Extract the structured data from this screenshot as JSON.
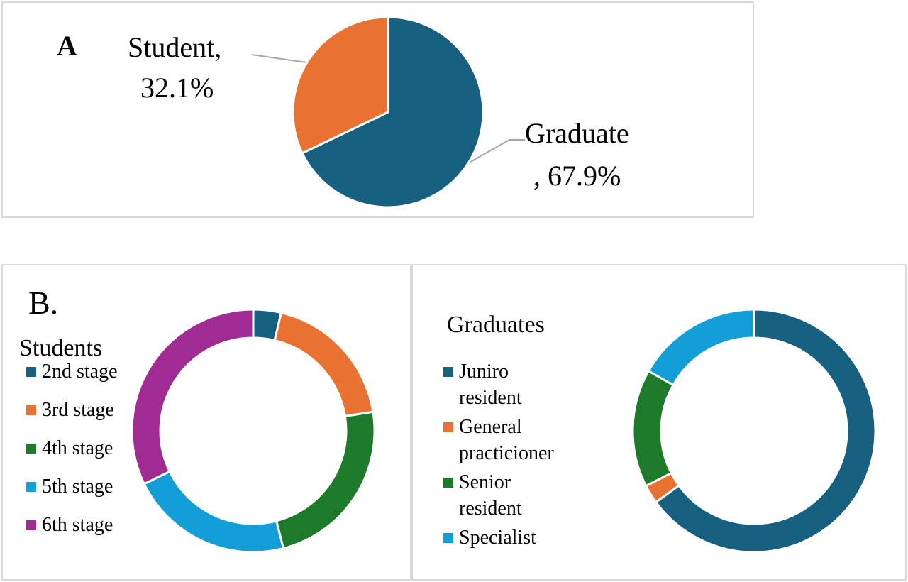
{
  "chart_data": [
    {
      "type": "pie",
      "panel": "A",
      "categories": [
        "Graduate",
        "Student"
      ],
      "values": [
        67.9,
        32.1
      ],
      "value_labels": [
        [
          "Graduate",
          ", 67.9%"
        ],
        [
          "Student,",
          "32.1%"
        ]
      ],
      "colors": [
        "#17607f",
        "#e97132"
      ]
    },
    {
      "type": "donut",
      "panel": "B.",
      "title": "Students",
      "categories": [
        "2nd stage",
        "3rd stage",
        "4th stage",
        "5th stage",
        "6th stage"
      ],
      "values": [
        3.7,
        18.8,
        23.5,
        21.8,
        32.2
      ],
      "colors": [
        "#17607f",
        "#e97132",
        "#1d7a2a",
        "#149ed7",
        "#a02b93"
      ]
    },
    {
      "type": "donut",
      "title": "Graduates",
      "categories": [
        "Juniro resident",
        "General practicioner",
        "Senior resident",
        "Specialist"
      ],
      "values": [
        65.0,
        2.5,
        15.7,
        16.8
      ],
      "colors": [
        "#17607f",
        "#e97132",
        "#1d7a2a",
        "#149ed7"
      ]
    }
  ]
}
